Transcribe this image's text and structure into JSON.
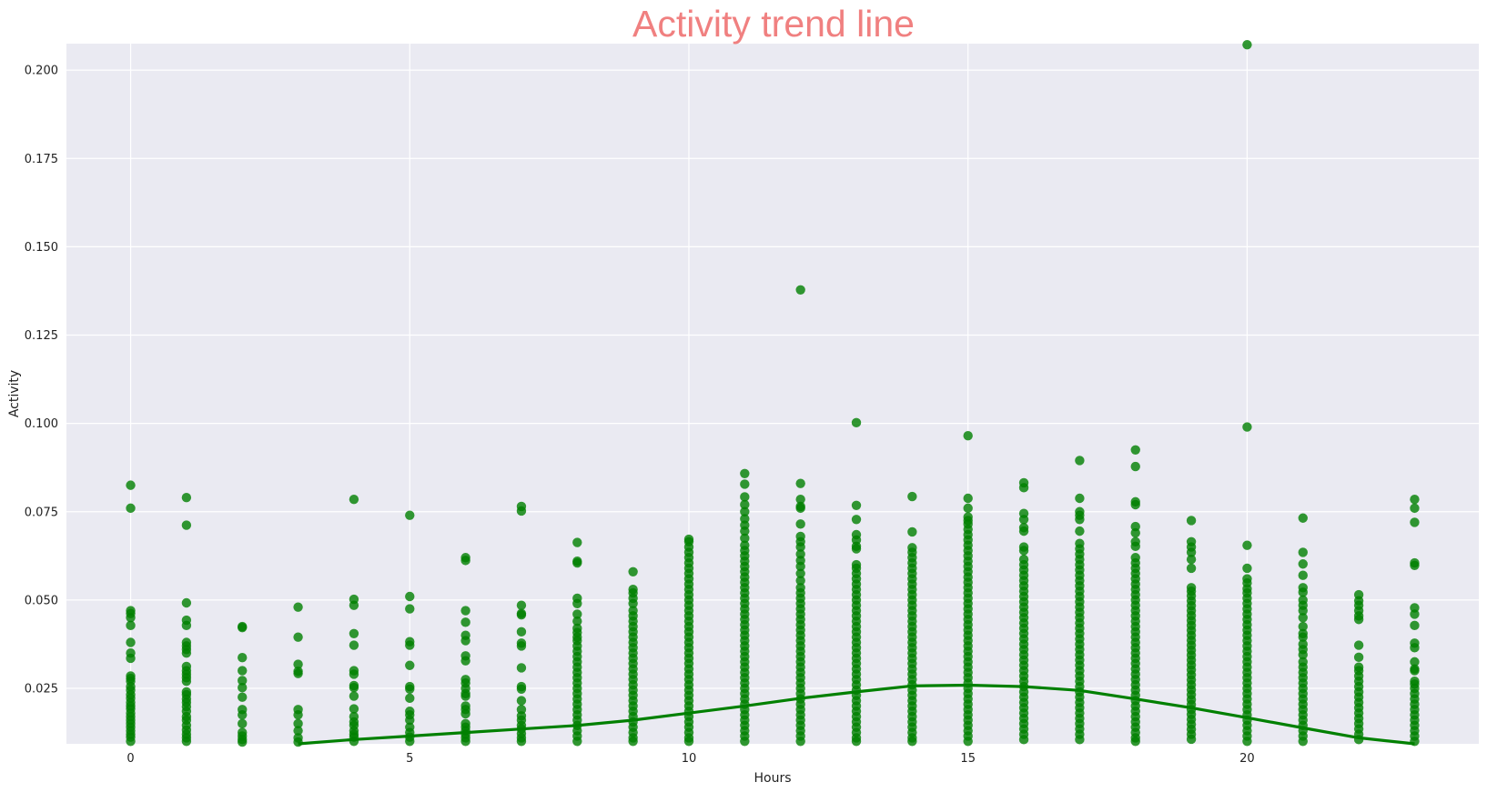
{
  "chart_data": {
    "type": "scatter",
    "title": "Activity trend line",
    "xlabel": "Hours",
    "ylabel": "Activity",
    "xlim": [
      -1.15,
      24.15
    ],
    "ylim": [
      0.0093,
      0.2075
    ],
    "x_ticks": [
      0,
      5,
      10,
      15,
      20
    ],
    "x_tick_labels": [
      "0",
      "5",
      "10",
      "15",
      "20"
    ],
    "y_ticks": [
      0.025,
      0.05,
      0.075,
      0.1,
      0.125,
      0.15,
      0.175,
      0.2
    ],
    "y_tick_labels": [
      "0.025",
      "0.050",
      "0.075",
      "0.100",
      "0.125",
      "0.150",
      "0.175",
      "0.200"
    ],
    "grid": true,
    "background_color": "#eaeaf2",
    "point_color": "#008000",
    "title_color": "#f08080",
    "series": [
      {
        "type": "scatter",
        "per_hour": [
          {
            "x": 0,
            "y": [
              0.0825,
              0.076,
              0.047,
              0.0462,
              0.045,
              0.0428,
              0.038,
              0.035,
              0.0335,
              0.0285,
              0.0278,
              0.027,
              0.0255,
              0.0245,
              0.0232,
              0.0222,
              0.021,
              0.02,
              0.0192,
              0.018,
              0.017,
              0.016,
              0.015,
              0.014,
              0.013,
              0.012,
              0.0112,
              0.01
            ]
          },
          {
            "x": 1,
            "y": [
              0.079,
              0.0712,
              0.0492,
              0.0443,
              0.0428,
              0.038,
              0.037,
              0.036,
              0.035,
              0.0312,
              0.03,
              0.029,
              0.028,
              0.027,
              0.024,
              0.0232,
              0.022,
              0.021,
              0.0198,
              0.0185,
              0.017,
              0.016,
              0.0145,
              0.0132,
              0.012,
              0.011,
              0.01
            ]
          },
          {
            "x": 2,
            "y": [
              0.0425,
              0.0422,
              0.0337,
              0.03,
              0.0272,
              0.0252,
              0.0225,
              0.019,
              0.0175,
              0.015,
              0.0125,
              0.0115,
              0.0105,
              0.0098
            ]
          },
          {
            "x": 3,
            "y": [
              0.048,
              0.0395,
              0.0318,
              0.0298,
              0.0292,
              0.019,
              0.0175,
              0.015,
              0.013,
              0.011,
              0.0098
            ]
          },
          {
            "x": 4,
            "y": [
              0.0785,
              0.0502,
              0.0485,
              0.0405,
              0.0372,
              0.03,
              0.029,
              0.0258,
              0.0252,
              0.0228,
              0.0192,
              0.017,
              0.0155,
              0.0145,
              0.013,
              0.012,
              0.0112,
              0.01
            ]
          },
          {
            "x": 5,
            "y": [
              0.074,
              0.051,
              0.0475,
              0.0382,
              0.0372,
              0.0315,
              0.0255,
              0.0248,
              0.0222,
              0.0185,
              0.0175,
              0.016,
              0.014,
              0.0125,
              0.0112,
              0.01
            ]
          },
          {
            "x": 6,
            "y": [
              0.062,
              0.0612,
              0.047,
              0.0437,
              0.04,
              0.0385,
              0.0342,
              0.0328,
              0.0275,
              0.0265,
              0.025,
              0.0235,
              0.0228,
              0.02,
              0.019,
              0.0178,
              0.015,
              0.014,
              0.013,
              0.012,
              0.011,
              0.01
            ]
          },
          {
            "x": 7,
            "y": [
              0.0765,
              0.0752,
              0.0485,
              0.0462,
              0.0458,
              0.041,
              0.0378,
              0.037,
              0.0308,
              0.0255,
              0.0248,
              0.0215,
              0.019,
              0.0172,
              0.016,
              0.0145,
              0.0135,
              0.0122,
              0.011,
              0.01
            ]
          },
          {
            "x": 8,
            "y": [
              0.0663,
              0.061,
              0.0605,
              0.0505,
              0.049,
              0.046,
              0.044,
              0.042,
              0.0408,
              0.0395,
              0.0385,
              0.037,
              0.0355,
              0.034,
              0.0325,
              0.031,
              0.0295,
              0.028,
              0.0265,
              0.025,
              0.0235,
              0.022,
              0.0205,
              0.019,
              0.0175,
              0.016,
              0.0145,
              0.013,
              0.0115,
              0.01
            ]
          },
          {
            "x": 9,
            "y": [
              0.058,
              0.053,
              0.052,
              0.0505,
              0.049,
              0.047,
              0.0455,
              0.044,
              0.0425,
              0.041,
              0.0395,
              0.038,
              0.0365,
              0.035,
              0.0335,
              0.032,
              0.0305,
              0.029,
              0.0275,
              0.026,
              0.0245,
              0.023,
              0.0215,
              0.02,
              0.0185,
              0.017,
              0.0155,
              0.014,
              0.0125,
              0.011,
              0.01
            ]
          },
          {
            "x": 10,
            "y": [
              0.0672,
              0.0665,
              0.065,
              0.0635,
              0.062,
              0.0605,
              0.059,
              0.0575,
              0.056,
              0.0545,
              0.053,
              0.0515,
              0.05,
              0.0485,
              0.047,
              0.0455,
              0.044,
              0.0425,
              0.041,
              0.0395,
              0.038,
              0.0365,
              0.035,
              0.0335,
              0.032,
              0.0305,
              0.029,
              0.0275,
              0.026,
              0.0245,
              0.023,
              0.0215,
              0.02,
              0.0185,
              0.017,
              0.0155,
              0.014,
              0.0125,
              0.011,
              0.01
            ]
          },
          {
            "x": 11,
            "y": [
              0.0858,
              0.0828,
              0.0792,
              0.077,
              0.075,
              0.073,
              0.0712,
              0.0695,
              0.0675,
              0.0655,
              0.064,
              0.0625,
              0.061,
              0.0595,
              0.058,
              0.0565,
              0.055,
              0.0535,
              0.052,
              0.0505,
              0.049,
              0.0475,
              0.046,
              0.0445,
              0.043,
              0.0415,
              0.04,
              0.0385,
              0.037,
              0.0355,
              0.034,
              0.0325,
              0.031,
              0.0295,
              0.028,
              0.0265,
              0.025,
              0.0235,
              0.022,
              0.0205,
              0.019,
              0.0175,
              0.016,
              0.0145,
              0.013,
              0.0115,
              0.01
            ]
          },
          {
            "x": 12,
            "y": [
              0.1378,
              0.083,
              0.0785,
              0.0765,
              0.076,
              0.0715,
              0.068,
              0.0665,
              0.065,
              0.063,
              0.0612,
              0.0595,
              0.0575,
              0.0555,
              0.0535,
              0.052,
              0.0505,
              0.049,
              0.0475,
              0.046,
              0.0445,
              0.043,
              0.0415,
              0.04,
              0.0385,
              0.037,
              0.0355,
              0.034,
              0.0325,
              0.031,
              0.0295,
              0.028,
              0.0265,
              0.025,
              0.0235,
              0.022,
              0.0205,
              0.019,
              0.0175,
              0.016,
              0.0145,
              0.013,
              0.0115,
              0.01
            ]
          },
          {
            "x": 13,
            "y": [
              0.1002,
              0.0768,
              0.0728,
              0.0685,
              0.067,
              0.0652,
              0.0645,
              0.06,
              0.059,
              0.0575,
              0.056,
              0.0545,
              0.053,
              0.0515,
              0.05,
              0.0485,
              0.047,
              0.0455,
              0.044,
              0.0425,
              0.041,
              0.0395,
              0.038,
              0.0365,
              0.035,
              0.0335,
              0.032,
              0.0305,
              0.029,
              0.0275,
              0.026,
              0.0245,
              0.023,
              0.0215,
              0.02,
              0.0185,
              0.017,
              0.0155,
              0.014,
              0.0125,
              0.011,
              0.01
            ]
          },
          {
            "x": 14,
            "y": [
              0.0793,
              0.0693,
              0.0648,
              0.0635,
              0.062,
              0.0605,
              0.059,
              0.0575,
              0.056,
              0.0545,
              0.053,
              0.0515,
              0.05,
              0.0485,
              0.047,
              0.0455,
              0.044,
              0.0425,
              0.041,
              0.0395,
              0.038,
              0.0365,
              0.035,
              0.0335,
              0.032,
              0.0305,
              0.029,
              0.0275,
              0.026,
              0.0245,
              0.023,
              0.0215,
              0.02,
              0.0185,
              0.017,
              0.0155,
              0.014,
              0.0125,
              0.011,
              0.01
            ]
          },
          {
            "x": 15,
            "y": [
              0.0965,
              0.0788,
              0.076,
              0.0735,
              0.0725,
              0.0715,
              0.07,
              0.0685,
              0.067,
              0.0655,
              0.064,
              0.0625,
              0.061,
              0.0595,
              0.058,
              0.0565,
              0.055,
              0.0535,
              0.052,
              0.0505,
              0.049,
              0.0475,
              0.046,
              0.0445,
              0.043,
              0.0415,
              0.04,
              0.0385,
              0.037,
              0.0355,
              0.034,
              0.0325,
              0.031,
              0.0295,
              0.028,
              0.0265,
              0.025,
              0.0235,
              0.022,
              0.0205,
              0.019,
              0.0175,
              0.016,
              0.0145,
              0.013,
              0.0115,
              0.01
            ]
          },
          {
            "x": 16,
            "y": [
              0.0832,
              0.0818,
              0.0745,
              0.0728,
              0.0705,
              0.0695,
              0.065,
              0.064,
              0.0615,
              0.06,
              0.0585,
              0.057,
              0.0555,
              0.054,
              0.0525,
              0.051,
              0.0495,
              0.048,
              0.0465,
              0.045,
              0.0435,
              0.042,
              0.0405,
              0.039,
              0.0375,
              0.036,
              0.0345,
              0.033,
              0.0315,
              0.03,
              0.0285,
              0.027,
              0.0255,
              0.024,
              0.0225,
              0.021,
              0.0195,
              0.018,
              0.0165,
              0.015,
              0.0135,
              0.012,
              0.0105
            ]
          },
          {
            "x": 17,
            "y": [
              0.0895,
              0.0788,
              0.075,
              0.074,
              0.0728,
              0.0695,
              0.066,
              0.0645,
              0.063,
              0.0615,
              0.06,
              0.0585,
              0.057,
              0.0555,
              0.054,
              0.0525,
              0.051,
              0.0495,
              0.048,
              0.0465,
              0.045,
              0.0435,
              0.042,
              0.0405,
              0.039,
              0.0375,
              0.036,
              0.0345,
              0.033,
              0.0315,
              0.03,
              0.0285,
              0.027,
              0.0255,
              0.024,
              0.0225,
              0.021,
              0.0195,
              0.018,
              0.0165,
              0.015,
              0.0135,
              0.012,
              0.0105
            ]
          },
          {
            "x": 18,
            "y": [
              0.0925,
              0.0878,
              0.0778,
              0.077,
              0.0708,
              0.069,
              0.0665,
              0.0652,
              0.062,
              0.0605,
              0.059,
              0.0575,
              0.056,
              0.0545,
              0.053,
              0.0515,
              0.05,
              0.0485,
              0.047,
              0.0455,
              0.044,
              0.0425,
              0.041,
              0.0395,
              0.038,
              0.0365,
              0.035,
              0.0335,
              0.032,
              0.0305,
              0.029,
              0.0275,
              0.026,
              0.0245,
              0.023,
              0.0215,
              0.02,
              0.0185,
              0.017,
              0.0155,
              0.014,
              0.0125,
              0.011,
              0.01
            ]
          },
          {
            "x": 19,
            "y": [
              0.0725,
              0.0665,
              0.065,
              0.0635,
              0.0615,
              0.059,
              0.0535,
              0.0525,
              0.0512,
              0.0498,
              0.0484,
              0.047,
              0.0456,
              0.0442,
              0.0428,
              0.0414,
              0.04,
              0.0386,
              0.0372,
              0.0358,
              0.0344,
              0.033,
              0.0316,
              0.0302,
              0.0288,
              0.0274,
              0.026,
              0.0246,
              0.0232,
              0.0218,
              0.0204,
              0.019,
              0.0176,
              0.0162,
              0.0148,
              0.0134,
              0.012,
              0.0106
            ]
          },
          {
            "x": 20,
            "y": [
              0.2072,
              0.099,
              0.0655,
              0.059,
              0.056,
              0.0548,
              0.0532,
              0.052,
              0.0505,
              0.049,
              0.0475,
              0.046,
              0.0445,
              0.043,
              0.0415,
              0.04,
              0.0385,
              0.037,
              0.0355,
              0.034,
              0.0325,
              0.031,
              0.0295,
              0.028,
              0.0265,
              0.025,
              0.0235,
              0.022,
              0.0205,
              0.019,
              0.0175,
              0.016,
              0.0145,
              0.013,
              0.0115,
              0.01
            ]
          },
          {
            "x": 21,
            "y": [
              0.0732,
              0.0635,
              0.0602,
              0.057,
              0.0535,
              0.0522,
              0.05,
              0.0485,
              0.047,
              0.045,
              0.0425,
              0.0405,
              0.0395,
              0.0375,
              0.036,
              0.0345,
              0.0325,
              0.031,
              0.0295,
              0.028,
              0.0265,
              0.025,
              0.0235,
              0.022,
              0.0205,
              0.019,
              0.0175,
              0.016,
              0.0145,
              0.013,
              0.0115,
              0.01
            ]
          },
          {
            "x": 22,
            "y": [
              0.0515,
              0.0498,
              0.0485,
              0.047,
              0.0455,
              0.0445,
              0.0372,
              0.0338,
              0.031,
              0.03,
              0.0285,
              0.027,
              0.0255,
              0.024,
              0.0225,
              0.021,
              0.0195,
              0.018,
              0.0165,
              0.015,
              0.0135,
              0.012,
              0.0105
            ]
          },
          {
            "x": 23,
            "y": [
              0.0785,
              0.076,
              0.072,
              0.0605,
              0.0598,
              0.0478,
              0.046,
              0.0428,
              0.0378,
              0.0365,
              0.0325,
              0.0305,
              0.03,
              0.027,
              0.0262,
              0.025,
              0.0235,
              0.022,
              0.0205,
              0.019,
              0.0175,
              0.016,
              0.0145,
              0.013,
              0.0115,
              0.01
            ]
          }
        ]
      },
      {
        "type": "line",
        "x": [
          3,
          4,
          5,
          6,
          7,
          8,
          9,
          10,
          11,
          12,
          13,
          14,
          15,
          16,
          17,
          18,
          19,
          20,
          21,
          22,
          23
        ],
        "y": [
          0.0093,
          0.0105,
          0.0115,
          0.0125,
          0.0135,
          0.0145,
          0.016,
          0.018,
          0.02,
          0.0222,
          0.024,
          0.0257,
          0.0259,
          0.0255,
          0.0244,
          0.022,
          0.0195,
          0.0167,
          0.0138,
          0.011,
          0.0093
        ]
      }
    ]
  }
}
